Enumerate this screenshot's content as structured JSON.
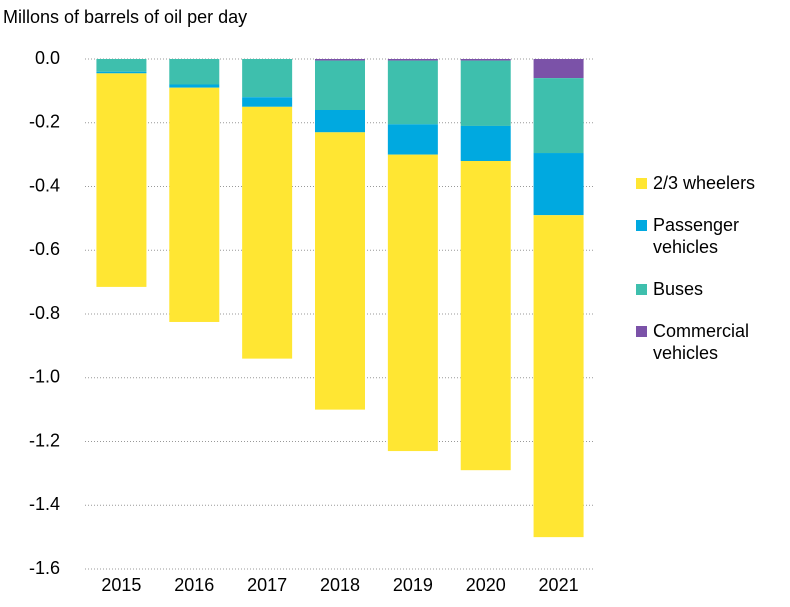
{
  "chart_data": {
    "type": "stacked_bar",
    "title": "Millons of barrels of oil per day",
    "categories": [
      "2015",
      "2016",
      "2017",
      "2018",
      "2019",
      "2020",
      "2021"
    ],
    "series": [
      {
        "name": "2/3 wheelers",
        "color": "#ffe633",
        "values": [
          -0.67,
          -0.735,
          -0.79,
          -0.87,
          -0.93,
          -0.97,
          -1.01
        ]
      },
      {
        "name": "Passenger vehicles",
        "color": "#00a9e0",
        "values": [
          -0.005,
          -0.01,
          -0.03,
          -0.07,
          -0.095,
          -0.11,
          -0.195
        ]
      },
      {
        "name": "Buses",
        "color": "#3ebfad",
        "values": [
          -0.04,
          -0.08,
          -0.12,
          -0.155,
          -0.2,
          -0.205,
          -0.235
        ]
      },
      {
        "name": "Commercial vehicles",
        "color": "#7b52a8",
        "values": [
          0,
          0,
          0,
          -0.005,
          -0.005,
          -0.005,
          -0.06
        ]
      }
    ],
    "ylim": [
      -1.6,
      0
    ],
    "yticks": [
      {
        "value": 0,
        "label": "0.0"
      },
      -0.2,
      -0.4,
      -0.6,
      -0.8,
      {
        "value": -1,
        "label": "-1.0"
      },
      -1.2,
      -1.4,
      -1.6
    ],
    "grid": true,
    "legend": "right"
  }
}
